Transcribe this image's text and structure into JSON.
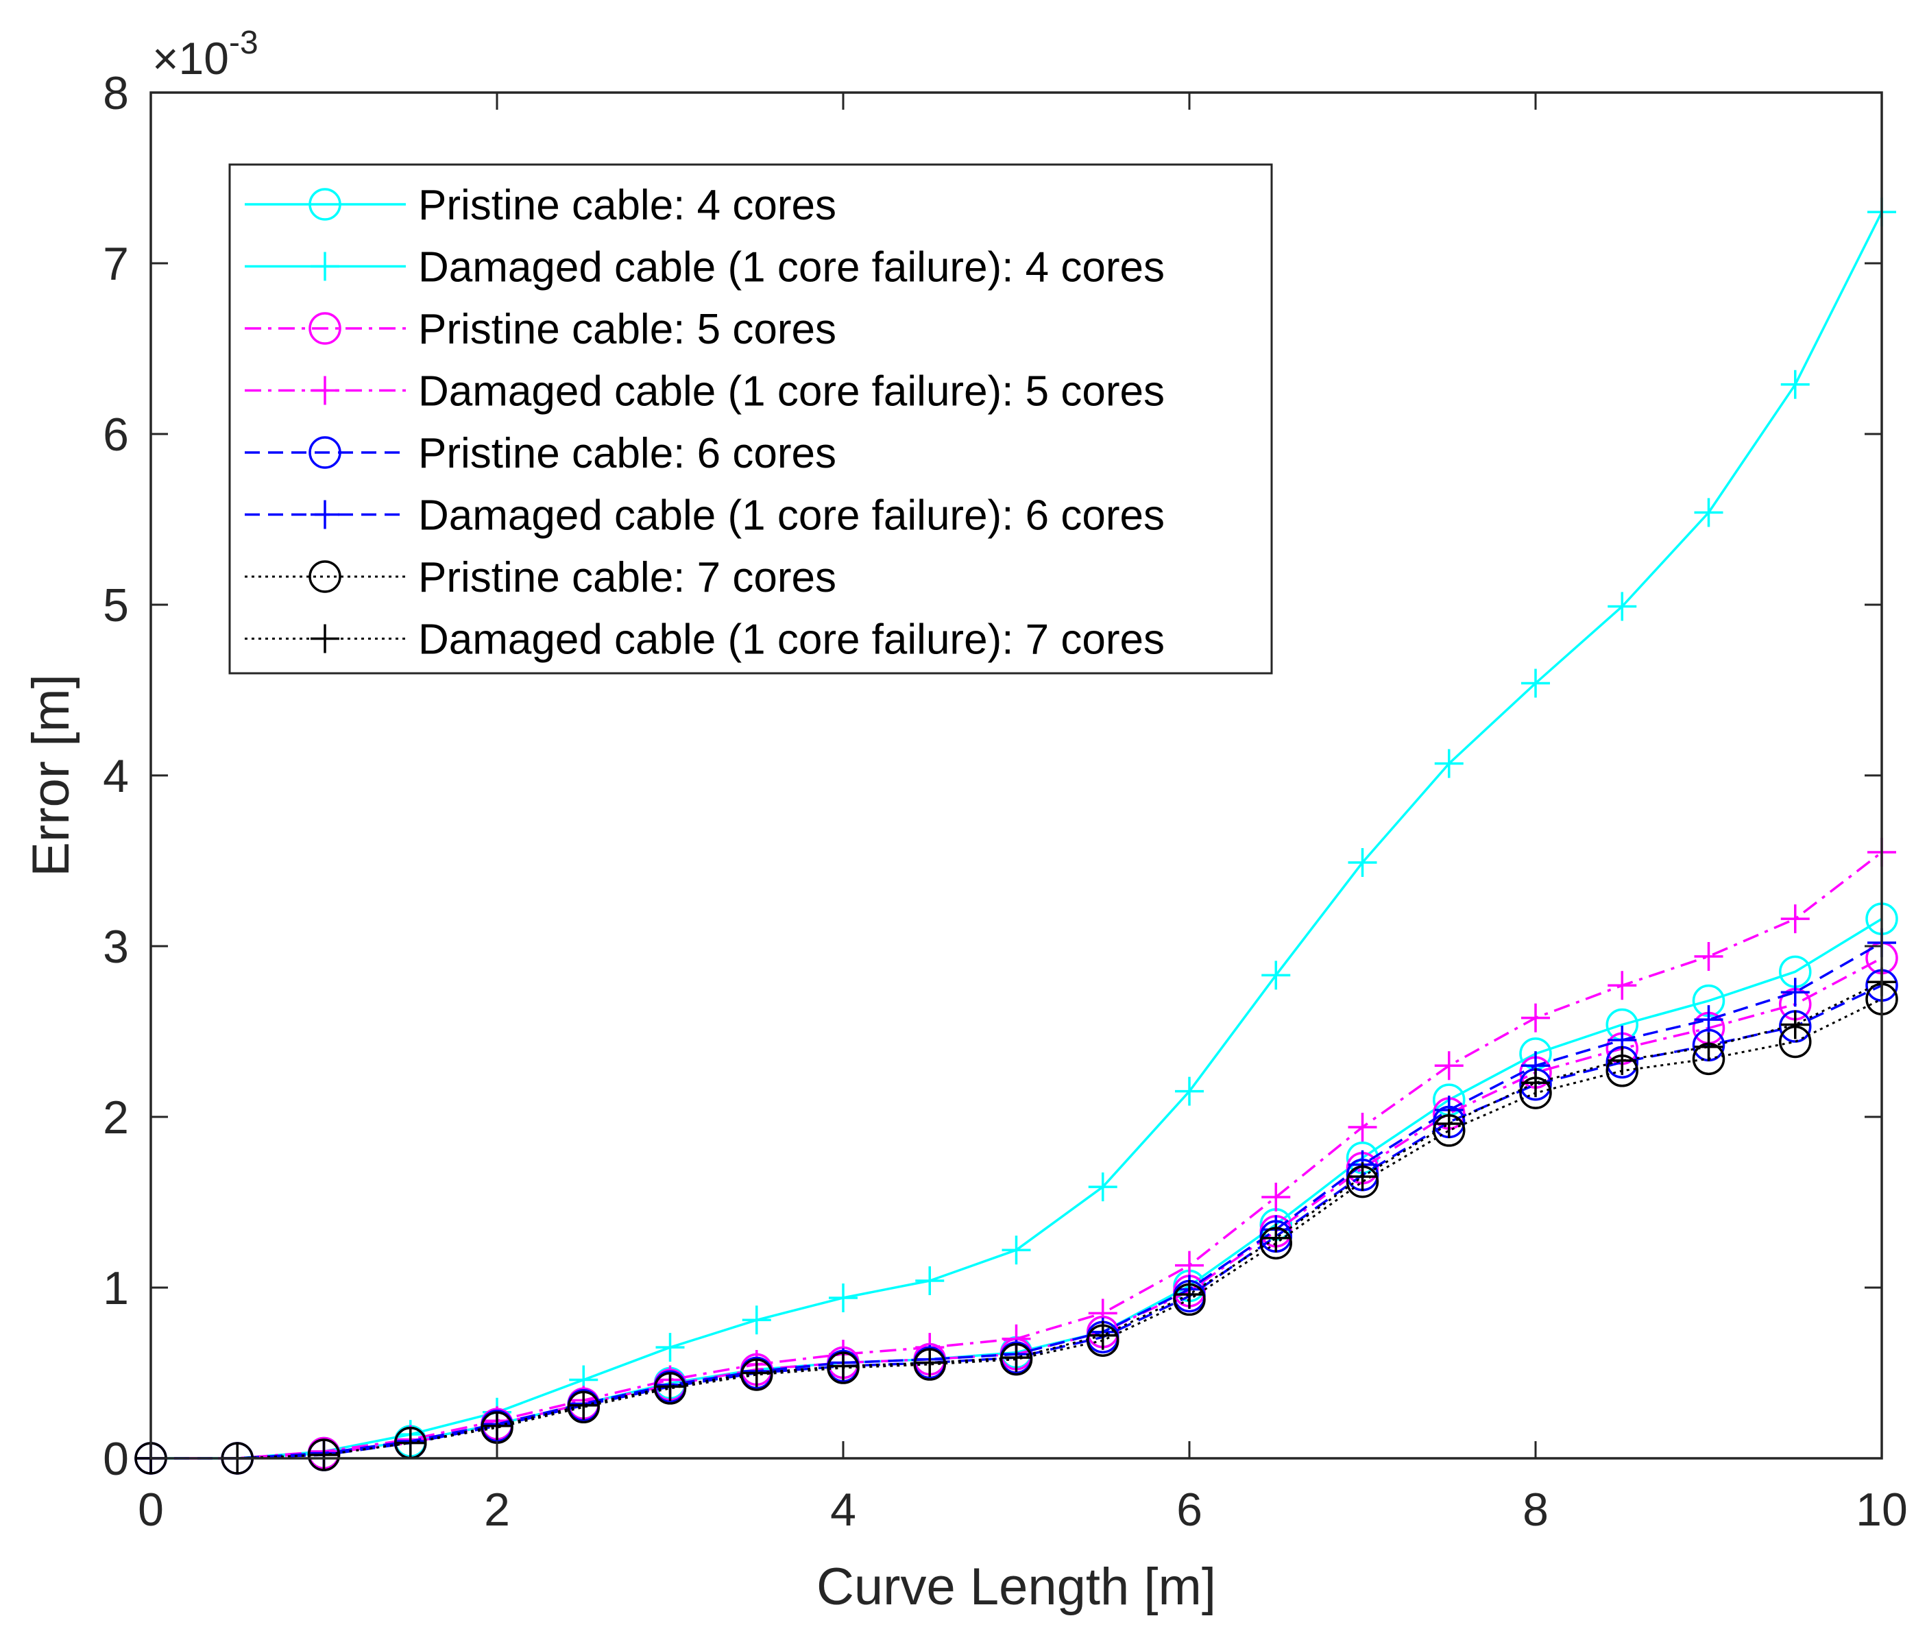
{
  "chart_data": {
    "type": "line",
    "title": "",
    "xlabel": "Curve Length [m]",
    "ylabel": "Error [m]",
    "xlim": [
      0,
      10
    ],
    "ylim": [
      0,
      8
    ],
    "y_scale_factor": {
      "base": "×10",
      "exponent": "-3"
    },
    "xticks": [
      "0",
      "2",
      "4",
      "6",
      "8",
      "10"
    ],
    "yticks": [
      "0",
      "1",
      "2",
      "3",
      "4",
      "5",
      "6",
      "7",
      "8"
    ],
    "grid": false,
    "legend_position": "top-left",
    "x": [
      0,
      0.5,
      1,
      1.5,
      2,
      2.5,
      3,
      3.5,
      4,
      4.5,
      5,
      5.5,
      6,
      6.5,
      7,
      7.5,
      8,
      8.5,
      9,
      9.5,
      10
    ],
    "series": [
      {
        "name": "Pristine cable: 4 cores",
        "color": "#00FFFF",
        "line": "solid",
        "marker": "circle",
        "values": [
          0,
          0,
          0.03,
          0.1,
          0.2,
          0.32,
          0.44,
          0.52,
          0.56,
          0.58,
          0.62,
          0.74,
          1.01,
          1.37,
          1.76,
          2.1,
          2.37,
          2.54,
          2.68,
          2.85,
          3.16
        ]
      },
      {
        "name": "Damaged cable (1 core failure): 4 cores",
        "color": "#00FFFF",
        "line": "solid",
        "marker": "plus",
        "values": [
          0,
          0,
          0.04,
          0.14,
          0.27,
          0.46,
          0.65,
          0.81,
          0.94,
          1.04,
          1.22,
          1.59,
          2.15,
          2.83,
          3.49,
          4.07,
          4.54,
          4.99,
          5.54,
          6.29,
          7.3
        ]
      },
      {
        "name": "Pristine cable: 5 cores",
        "color": "#FF00FF",
        "line": "dashdot",
        "marker": "circle",
        "values": [
          0,
          0,
          0.03,
          0.09,
          0.2,
          0.32,
          0.43,
          0.52,
          0.56,
          0.58,
          0.61,
          0.74,
          0.98,
          1.33,
          1.7,
          2.02,
          2.26,
          2.4,
          2.52,
          2.66,
          2.93
        ]
      },
      {
        "name": "Damaged cable (1 core failure): 5 cores",
        "color": "#FF00FF",
        "line": "dashdot",
        "marker": "plus",
        "values": [
          0,
          0,
          0.04,
          0.11,
          0.22,
          0.34,
          0.46,
          0.55,
          0.61,
          0.65,
          0.7,
          0.85,
          1.13,
          1.53,
          1.94,
          2.3,
          2.58,
          2.77,
          2.94,
          3.16,
          3.55
        ]
      },
      {
        "name": "Pristine cable: 6 cores",
        "color": "#0000FF",
        "line": "dashed",
        "marker": "circle",
        "values": [
          0,
          0,
          0.02,
          0.09,
          0.19,
          0.31,
          0.42,
          0.5,
          0.54,
          0.56,
          0.59,
          0.71,
          0.95,
          1.3,
          1.66,
          1.97,
          2.19,
          2.32,
          2.42,
          2.53,
          2.77
        ]
      },
      {
        "name": "Damaged cable (1 core failure): 6 cores",
        "color": "#0000FF",
        "line": "dashed",
        "marker": "plus",
        "values": [
          0,
          0,
          0.03,
          0.1,
          0.2,
          0.32,
          0.43,
          0.51,
          0.56,
          0.58,
          0.61,
          0.74,
          0.99,
          1.34,
          1.72,
          2.04,
          2.3,
          2.45,
          2.57,
          2.73,
          3.02
        ]
      },
      {
        "name": "Pristine cable: 7 cores",
        "color": "#000000",
        "line": "dotted",
        "marker": "circle",
        "values": [
          0,
          0,
          0.02,
          0.09,
          0.18,
          0.3,
          0.41,
          0.49,
          0.53,
          0.55,
          0.58,
          0.69,
          0.93,
          1.26,
          1.62,
          1.92,
          2.14,
          2.27,
          2.34,
          2.44,
          2.69
        ]
      },
      {
        "name": "Damaged cable (1 core failure): 7 cores",
        "color": "#000000",
        "line": "dotted",
        "marker": "plus",
        "values": [
          0,
          0,
          0.02,
          0.09,
          0.19,
          0.31,
          0.42,
          0.5,
          0.54,
          0.56,
          0.59,
          0.72,
          0.96,
          1.29,
          1.65,
          1.96,
          2.2,
          2.33,
          2.41,
          2.54,
          2.79
        ]
      }
    ]
  }
}
